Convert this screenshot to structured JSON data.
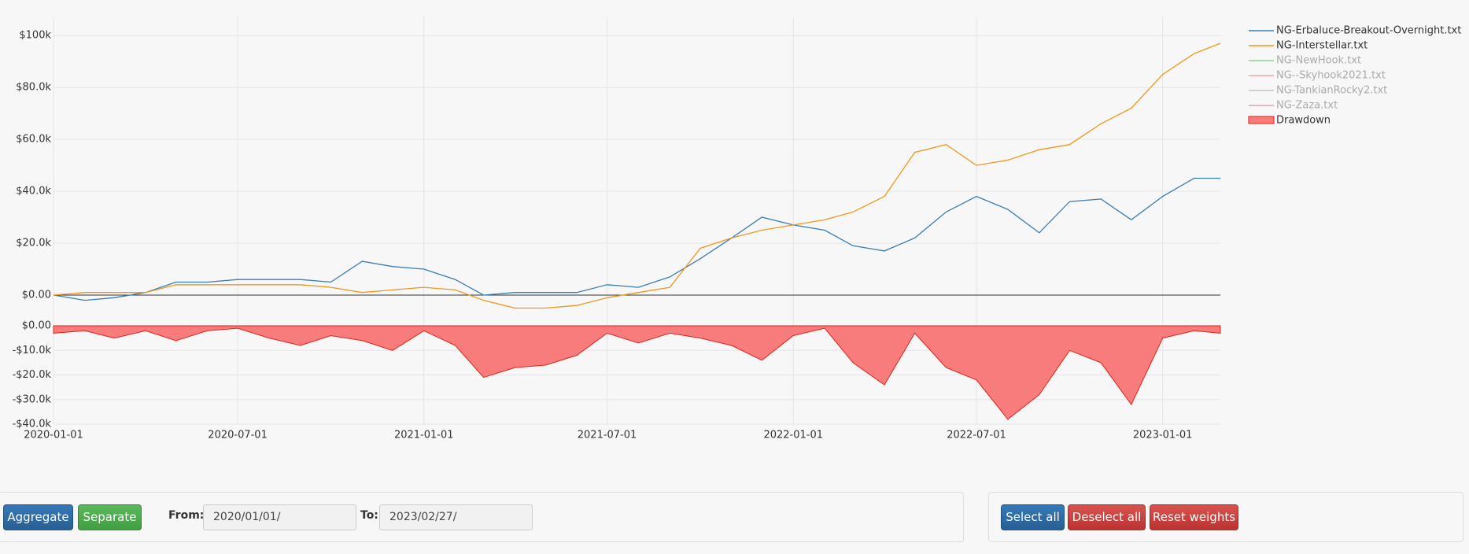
{
  "chart_data": {
    "type": "line",
    "x": [
      "2020-01-01",
      "2020-02-01",
      "2020-03-01",
      "2020-04-01",
      "2020-05-01",
      "2020-06-01",
      "2020-07-01",
      "2020-08-01",
      "2020-09-01",
      "2020-10-01",
      "2020-11-01",
      "2020-12-01",
      "2021-01-01",
      "2021-02-01",
      "2021-03-01",
      "2021-04-01",
      "2021-05-01",
      "2021-06-01",
      "2021-07-01",
      "2021-08-01",
      "2021-09-01",
      "2021-10-01",
      "2021-11-01",
      "2021-12-01",
      "2022-01-01",
      "2022-02-01",
      "2022-03-01",
      "2022-04-01",
      "2022-05-01",
      "2022-06-01",
      "2022-07-01",
      "2022-08-01",
      "2022-09-01",
      "2022-10-01",
      "2022-11-01",
      "2022-12-01",
      "2023-01-01",
      "2023-02-01",
      "2023-02-27"
    ],
    "xlim": [
      "2020-01-01",
      "2023-02-27"
    ],
    "xticks": [
      "2020-01-01",
      "2020-07-01",
      "2021-01-01",
      "2021-07-01",
      "2022-01-01",
      "2022-07-01",
      "2023-01-01"
    ],
    "ylim": [
      -10000,
      107000
    ],
    "yticks": [
      {
        "value": 0,
        "label": "$0.00"
      },
      {
        "value": 20000,
        "label": "$20.0k"
      },
      {
        "value": 40000,
        "label": "$40.0k"
      },
      {
        "value": 60000,
        "label": "$60.0k"
      },
      {
        "value": 80000,
        "label": "$80.0k"
      },
      {
        "value": 100000,
        "label": "$100k"
      }
    ],
    "y2lim": [
      -40000,
      0
    ],
    "y2ticks": [
      {
        "value": 0,
        "label": "$0.00"
      },
      {
        "value": -10000,
        "label": "-$10.0k"
      },
      {
        "value": -20000,
        "label": "-$20.0k"
      },
      {
        "value": -30000,
        "label": "-$30.0k"
      },
      {
        "value": -40000,
        "label": "-$40.0k"
      }
    ],
    "grid": true,
    "legend": "right",
    "series": [
      {
        "name": "NG-Erbaluce-Breakout-Overnight.txt",
        "color": "#3a7db3",
        "values": [
          0,
          -2000,
          -1000,
          1000,
          5000,
          5000,
          6000,
          6000,
          6000,
          5000,
          13000,
          11000,
          10000,
          6000,
          0,
          1000,
          1000,
          1000,
          4000,
          3000,
          7000,
          14000,
          22000,
          30000,
          27000,
          25000,
          19000,
          17000,
          22000,
          32000,
          38000,
          33000,
          24000,
          36000,
          37000,
          29000,
          38000,
          45000,
          45000
        ]
      },
      {
        "name": "NG-Interstellar.txt",
        "color": "#f0961f",
        "values": [
          0,
          1000,
          1000,
          1000,
          4000,
          4000,
          4000,
          4000,
          4000,
          3000,
          1000,
          2000,
          3000,
          2000,
          -2000,
          -5000,
          -5000,
          -4000,
          -1000,
          1000,
          3000,
          18000,
          22000,
          25000,
          27000,
          29000,
          32000,
          38000,
          55000,
          58000,
          50000,
          52000,
          56000,
          58000,
          66000,
          72000,
          85000,
          93000,
          97000
        ]
      },
      {
        "name": "NG-NewHook.txt",
        "color": "#8fd18f",
        "visible": false
      },
      {
        "name": "NG--Skyhook2021.txt",
        "color": "#f2a7ae",
        "visible": false
      },
      {
        "name": "NG-TankianRocky2.txt",
        "color": "#c4c4c4",
        "visible": false
      },
      {
        "name": "NG-Zaza.txt",
        "color": "#d7a3b6",
        "visible": false
      },
      {
        "name": "Drawdown",
        "color": "#f87c7c",
        "type": "area",
        "axis": "y2",
        "values": [
          -3000,
          -2000,
          -5000,
          -2000,
          -6000,
          -2000,
          -1000,
          -5000,
          -8000,
          -4000,
          -6000,
          -10000,
          -2000,
          -8000,
          -21000,
          -17000,
          -16000,
          -12000,
          -3000,
          -7000,
          -3000,
          -5000,
          -8000,
          -14000,
          -4000,
          -1000,
          -15000,
          -24000,
          -3000,
          -17000,
          -22000,
          -38000,
          -28000,
          -10000,
          -15000,
          -32000,
          -5000,
          -2000,
          -3000
        ]
      }
    ]
  },
  "controls": {
    "left_buttons": [
      "Aggregate",
      "Separate"
    ],
    "from_label": "From:",
    "from_value": "2020/01/01/",
    "to_label": "To:",
    "to_value": "2023/02/27/",
    "right_buttons": [
      "Select all",
      "Deselect all",
      "Reset weights"
    ]
  }
}
